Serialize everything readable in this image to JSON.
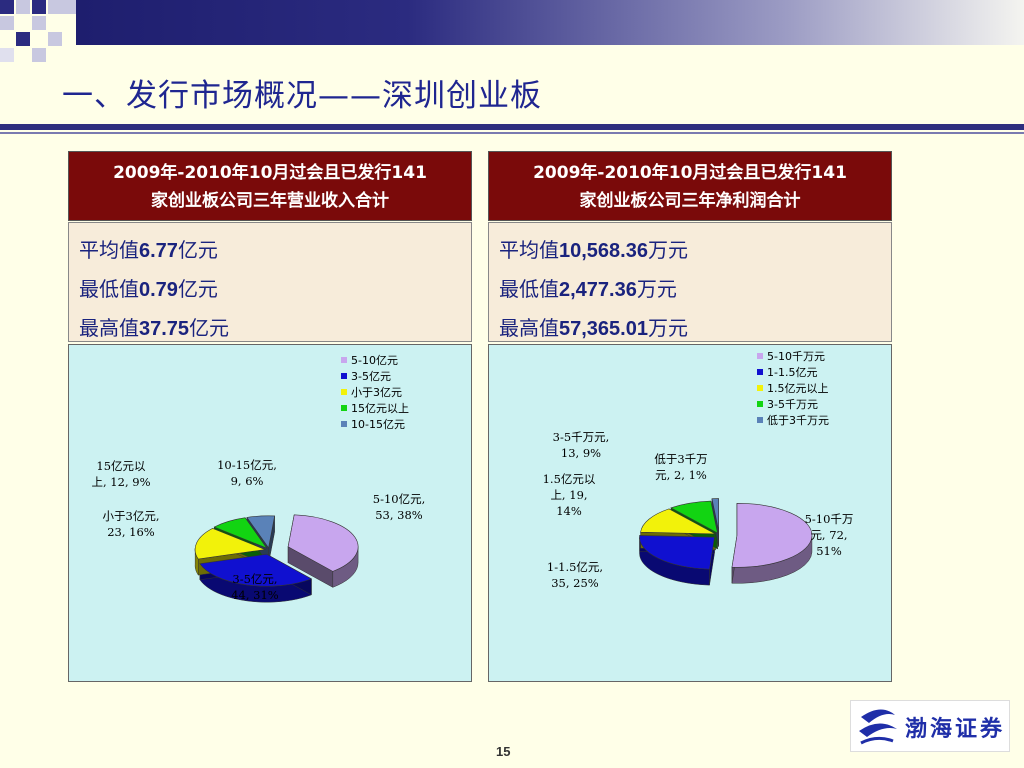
{
  "title": "一、发行市场概况——深圳创业板",
  "page_number": "15",
  "logo_text": "渤海证券",
  "panels": [
    {
      "header_line1": "2009年-2010年10月过会且已发行141",
      "header_line2": "家创业板公司三年营业收入合计",
      "stats": [
        {
          "label": "平均值",
          "value": "6.77",
          "unit": "亿元"
        },
        {
          "label": "最低值",
          "value": "0.79",
          "unit": "亿元"
        },
        {
          "label": "最高值",
          "value": "37.75",
          "unit": "亿元"
        }
      ]
    },
    {
      "header_line1": "2009年-2010年10月过会且已发行141",
      "header_line2": "家创业板公司三年净利润合计",
      "stats": [
        {
          "label": "平均值",
          "value": "10,568.36",
          "unit": "万元"
        },
        {
          "label": "最低值",
          "value": "2,477.36",
          "unit": "万元"
        },
        {
          "label": "最高值",
          "value": "57,365.01",
          "unit": "万元"
        }
      ]
    }
  ],
  "chart_data": [
    {
      "type": "pie",
      "legend": [
        "5-10亿元",
        "3-5亿元",
        "小于3亿元",
        "15亿元以上",
        "10-15亿元"
      ],
      "slices": [
        {
          "name": "5-10亿元",
          "value": 53,
          "percent": "38%",
          "color": "#C8A6EE",
          "label_lines": [
            "5-10亿元,",
            "53, 38%"
          ]
        },
        {
          "name": "3-5亿元",
          "value": 44,
          "percent": "31%",
          "color": "#1010D0",
          "label_lines": [
            "3-5亿元,",
            "44, 31%"
          ]
        },
        {
          "name": "小于3亿元",
          "value": 23,
          "percent": "16%",
          "color": "#F2F20A",
          "label_lines": [
            "小于3亿元,",
            "23, 16%"
          ]
        },
        {
          "name": "15亿元以上",
          "value": 12,
          "percent": "9%",
          "color": "#12D412",
          "label_lines": [
            "15亿元以",
            "上, 12, 9%"
          ]
        },
        {
          "name": "10-15亿元",
          "value": 9,
          "percent": "6%",
          "color": "#5A82B8",
          "label_lines": [
            "10-15亿元,",
            "9, 6%"
          ]
        }
      ]
    },
    {
      "type": "pie",
      "legend": [
        "5-10千万元",
        "1-1.5亿元",
        "1.5亿元以上",
        "3-5千万元",
        "低于3千万元"
      ],
      "slices": [
        {
          "name": "5-10千万元",
          "value": 72,
          "percent": "51%",
          "color": "#C8A6EE",
          "label_lines": [
            "5-10千万",
            "元, 72,",
            "51%"
          ]
        },
        {
          "name": "1-1.5亿元",
          "value": 35,
          "percent": "25%",
          "color": "#1010D0",
          "label_lines": [
            "1-1.5亿元,",
            "35, 25%"
          ]
        },
        {
          "name": "1.5亿元以上",
          "value": 19,
          "percent": "14%",
          "color": "#F2F20A",
          "label_lines": [
            "1.5亿元以",
            "上, 19,",
            "14%"
          ]
        },
        {
          "name": "3-5千万元",
          "value": 13,
          "percent": "9%",
          "color": "#12D412",
          "label_lines": [
            "3-5千万元,",
            "13, 9%"
          ]
        },
        {
          "name": "低于3千万元",
          "value": 2,
          "percent": "1%",
          "color": "#5A82B8",
          "label_lines": [
            "低于3千万",
            "元, 2, 1%"
          ]
        }
      ]
    }
  ]
}
